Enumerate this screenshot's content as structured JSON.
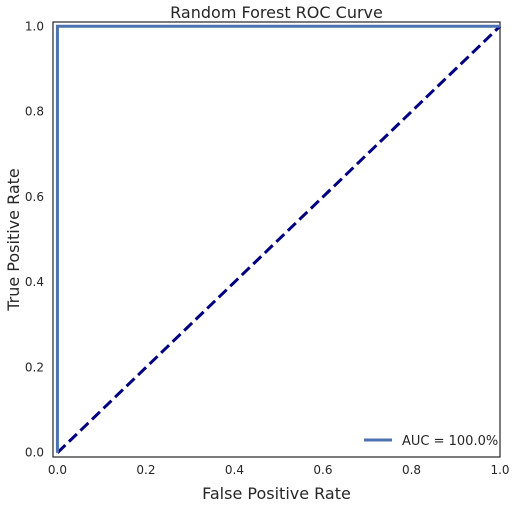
{
  "chart_data": {
    "type": "line",
    "title": "Random Forest ROC Curve",
    "xlabel": "False Positive Rate",
    "ylabel": "True Positive Rate",
    "xlim": [
      -0.01,
      1.0
    ],
    "ylim": [
      -0.01,
      1.01
    ],
    "xticks": [
      "0.0",
      "0.2",
      "0.4",
      "0.6",
      "0.8",
      "1.0"
    ],
    "yticks": [
      "0.0",
      "0.2",
      "0.4",
      "0.6",
      "0.8",
      "1.0"
    ],
    "grid": false,
    "legend_position": "lower right",
    "series": [
      {
        "name": "AUC = 100.0%",
        "color": "#4c72b0",
        "style": "solid",
        "x": [
          0.0,
          0.0,
          0.005,
          1.0
        ],
        "y": [
          0.0,
          1.0,
          1.0,
          1.0
        ]
      },
      {
        "color": "#000080",
        "style": "dashed",
        "x": [
          0.0,
          1.0
        ],
        "y": [
          0.0,
          1.0
        ]
      }
    ]
  }
}
